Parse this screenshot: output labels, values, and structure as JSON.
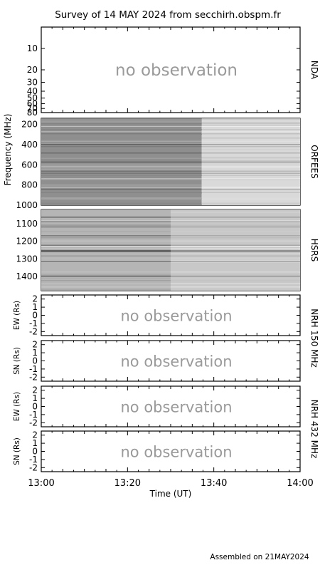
{
  "title": "Survey of 14 MAY 2024 from secchirh.obspm.fr",
  "footer": "Assembled on 21MAY2024",
  "no_observation_text": "no observation",
  "chart_data": {
    "type": "heatmap",
    "x_axis": {
      "label": "Time (UT)",
      "range": [
        "13:00",
        "14:00"
      ],
      "tick_labels": [
        "13:00",
        "13:20",
        "13:40",
        "14:00"
      ]
    },
    "shared_frequency_label": "Frequency (MHz)",
    "panels": [
      {
        "id": "nda",
        "name": "NDA",
        "status": "no observation",
        "y_range": [
          5,
          80
        ],
        "y_ticks": [
          10,
          20,
          30,
          40,
          50,
          60,
          70,
          80
        ],
        "y_tick_labels": [
          "10",
          "20",
          "30",
          "40",
          "50",
          "60",
          "70",
          "80"
        ],
        "y_scale": "log"
      },
      {
        "id": "orfees",
        "name": "ORFEES",
        "status": "observed",
        "y_range": [
          140,
          1000
        ],
        "y_ticks": [
          200,
          400,
          600,
          800,
          1000
        ],
        "y_tick_labels": [
          "200",
          "400",
          "600",
          "800",
          "1000"
        ],
        "y_scale": "linear"
      },
      {
        "id": "hsrs",
        "name": "HSRS",
        "status": "observed",
        "y_range": [
          1020,
          1480
        ],
        "y_ticks": [
          1100,
          1200,
          1300,
          1400
        ],
        "y_tick_labels": [
          "1100",
          "1200",
          "1300",
          "1400"
        ],
        "y_scale": "linear"
      },
      {
        "id": "nrh150_ew",
        "ylabel": "EW (Rs)",
        "status": "no observation",
        "y_range": [
          -2.5,
          2.5
        ],
        "y_ticks": [
          -2,
          -1,
          0,
          1,
          2
        ],
        "y_tick_labels": [
          "-2",
          "-1",
          "0",
          "1",
          "2"
        ]
      },
      {
        "id": "nrh150_sn",
        "ylabel": "SN (Rs)",
        "status": "no observation",
        "y_range": [
          -2.5,
          2.5
        ],
        "y_ticks": [
          -2,
          -1,
          0,
          1,
          2
        ],
        "y_tick_labels": [
          "-2",
          "-1",
          "0",
          "1",
          "2"
        ]
      },
      {
        "id": "nrh432_ew",
        "ylabel": "EW (Rs)",
        "status": "no observation",
        "y_range": [
          -2.5,
          2.5
        ],
        "y_ticks": [
          -2,
          -1,
          0,
          1,
          2
        ],
        "y_tick_labels": [
          "-2",
          "-1",
          "0",
          "1",
          "2"
        ]
      },
      {
        "id": "nrh432_sn",
        "ylabel": "SN (Rs)",
        "status": "no observation",
        "y_range": [
          -2.5,
          2.5
        ],
        "y_ticks": [
          -2,
          -1,
          0,
          1,
          2
        ],
        "y_tick_labels": [
          "-2",
          "-1",
          "0",
          "1",
          "2"
        ]
      }
    ],
    "instrument_labels": {
      "nrh_150": "NRH 150 MHz",
      "nrh_432": "NRH 432 MHz"
    }
  }
}
